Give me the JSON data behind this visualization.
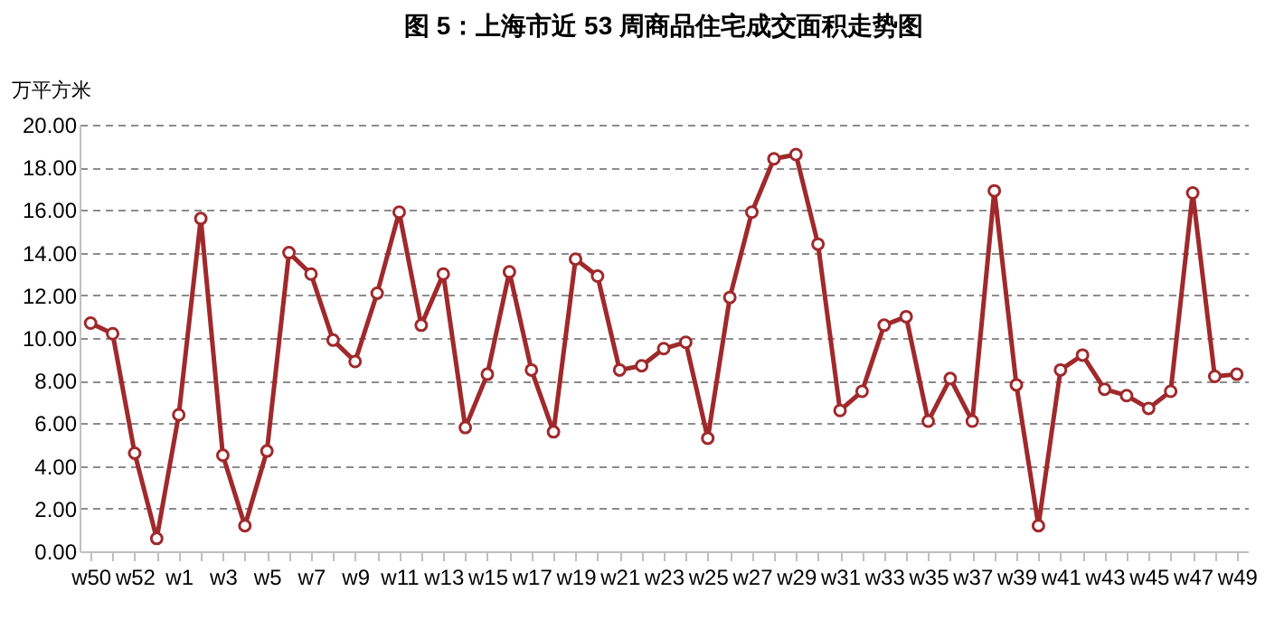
{
  "chart_data": {
    "type": "line",
    "title": "图 5：上海市近 53 周商品住宅成交面积走势图",
    "ylabel": "万平方米",
    "categories": [
      "w50",
      null,
      "w52",
      null,
      "w1",
      null,
      "w3",
      null,
      "w5",
      null,
      "w7",
      null,
      "w9",
      null,
      "w11",
      null,
      "w13",
      null,
      "w15",
      null,
      "w17",
      null,
      "w19",
      null,
      "w21",
      null,
      "w23",
      null,
      "w25",
      null,
      "w27",
      null,
      "w29",
      null,
      "w31",
      null,
      "w33",
      null,
      "w35",
      null,
      "w37",
      null,
      "w39",
      null,
      "w41",
      null,
      "w43",
      null,
      "w45",
      null,
      "w47",
      null,
      "w49"
    ],
    "series": [
      {
        "color": "#a0292b",
        "values": [
          10.7,
          10.2,
          4.6,
          0.6,
          6.4,
          15.6,
          4.5,
          1.2,
          4.7,
          14.0,
          13.0,
          9.9,
          8.9,
          12.1,
          15.9,
          10.6,
          13.0,
          5.8,
          8.3,
          13.1,
          8.5,
          5.6,
          13.7,
          12.9,
          8.5,
          8.7,
          9.5,
          9.8,
          5.3,
          11.9,
          15.9,
          18.4,
          18.6,
          14.4,
          6.6,
          7.5,
          10.6,
          11.0,
          6.1,
          8.1,
          6.1,
          16.9,
          7.8,
          1.2,
          8.5,
          9.2,
          7.6,
          7.3,
          6.7,
          7.5,
          16.8,
          8.2,
          8.3
        ]
      }
    ],
    "ylim": [
      0,
      20
    ],
    "yticks": [
      {
        "value": 0,
        "label": "0.00"
      },
      {
        "value": 2,
        "label": "2.00"
      },
      {
        "value": 4,
        "label": "4.00"
      },
      {
        "value": 6,
        "label": "6.00"
      },
      {
        "value": 8,
        "label": "8.00"
      },
      {
        "value": 10,
        "label": "10.00"
      },
      {
        "value": 12,
        "label": "12.00"
      },
      {
        "value": 14,
        "label": "14.00"
      },
      {
        "value": 16,
        "label": "16.00"
      },
      {
        "value": 18,
        "label": "18.00"
      },
      {
        "value": 20,
        "label": "20.00"
      }
    ],
    "grid": "y",
    "marker": "circle"
  }
}
